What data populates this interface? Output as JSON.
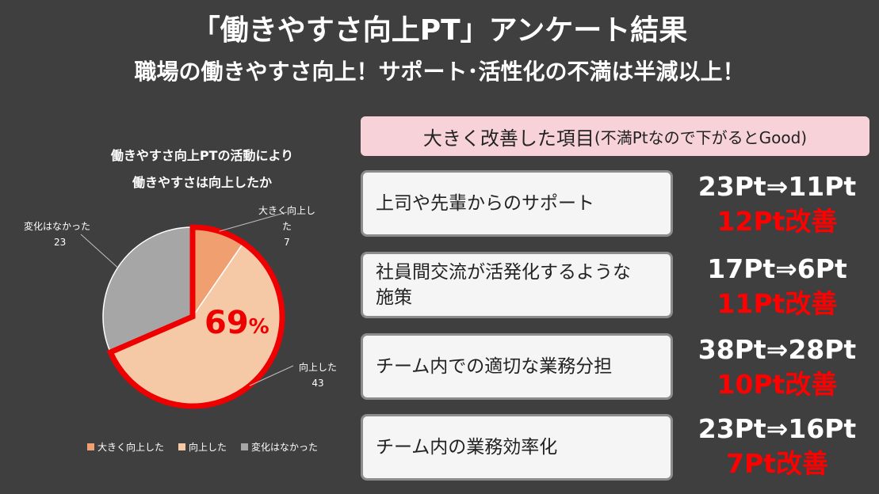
{
  "header": {
    "title": "「働きやすさ向上PT」アンケート結果",
    "subtitle": "職場の働きやすさ向上！サポート･活性化の不満は半減以上！"
  },
  "chart": {
    "title_line1": "働きやすさ向上PTの活動により",
    "title_line2": "働きやすさは向上したか",
    "highlight_value": "69",
    "highlight_unit": "%",
    "highlight_color": "#ee0000"
  },
  "chart_data": {
    "type": "pie",
    "categories": [
      "大きく向上した",
      "向上した",
      "変化はなかった"
    ],
    "values": [
      7,
      43,
      23
    ],
    "colors": [
      "#f0a070",
      "#f6c9a6",
      "#a6a6a6"
    ],
    "legend_position": "bottom"
  },
  "improvements": {
    "heading": "大きく改善した項目",
    "heading_note": "(不満Ptなので下がるとGood)",
    "items": [
      {
        "label": "上司や先輩からのサポート",
        "change": "23Pt⇒11Pt",
        "improvement": "12Pt改善"
      },
      {
        "label": "社員間交流が活発化するような施策",
        "change": "17Pt⇒6Pt",
        "improvement": "11Pt改善"
      },
      {
        "label": "チーム内での適切な業務分担",
        "change": "38Pt⇒28Pt",
        "improvement": "10Pt改善"
      },
      {
        "label": "チーム内の業務効率化",
        "change": "23Pt⇒16Pt",
        "improvement": "7Pt改善"
      }
    ]
  },
  "colors": {
    "background": "#3f3f3f",
    "banner": "#f7d2d8",
    "accent_red": "#ff0000"
  }
}
